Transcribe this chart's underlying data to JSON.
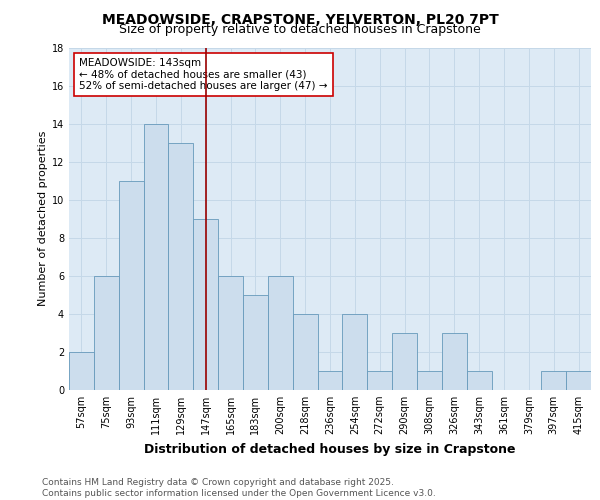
{
  "title1": "MEADOWSIDE, CRAPSTONE, YELVERTON, PL20 7PT",
  "title2": "Size of property relative to detached houses in Crapstone",
  "xlabel": "Distribution of detached houses by size in Crapstone",
  "ylabel": "Number of detached properties",
  "categories": [
    "57sqm",
    "75sqm",
    "93sqm",
    "111sqm",
    "129sqm",
    "147sqm",
    "165sqm",
    "183sqm",
    "200sqm",
    "218sqm",
    "236sqm",
    "254sqm",
    "272sqm",
    "290sqm",
    "308sqm",
    "326sqm",
    "343sqm",
    "361sqm",
    "379sqm",
    "397sqm",
    "415sqm"
  ],
  "values": [
    2,
    6,
    11,
    14,
    13,
    9,
    6,
    5,
    6,
    4,
    1,
    4,
    1,
    3,
    1,
    3,
    1,
    0,
    0,
    1,
    1
  ],
  "bar_color": "#ccdded",
  "bar_edge_color": "#6699bb",
  "grid_color": "#c5d8e8",
  "background_color": "#ddeaf5",
  "vline_x_index": 5.0,
  "vline_color": "#990000",
  "annotation_text": "MEADOWSIDE: 143sqm\n← 48% of detached houses are smaller (43)\n52% of semi-detached houses are larger (47) →",
  "annotation_box_facecolor": "#ffffff",
  "annotation_box_edgecolor": "#cc0000",
  "ylim": [
    0,
    18
  ],
  "yticks": [
    0,
    2,
    4,
    6,
    8,
    10,
    12,
    14,
    16,
    18
  ],
  "footer_text": "Contains HM Land Registry data © Crown copyright and database right 2025.\nContains public sector information licensed under the Open Government Licence v3.0.",
  "title1_fontsize": 10,
  "title2_fontsize": 9,
  "xlabel_fontsize": 9,
  "ylabel_fontsize": 8,
  "tick_fontsize": 7,
  "annotation_fontsize": 7.5,
  "footer_fontsize": 6.5
}
